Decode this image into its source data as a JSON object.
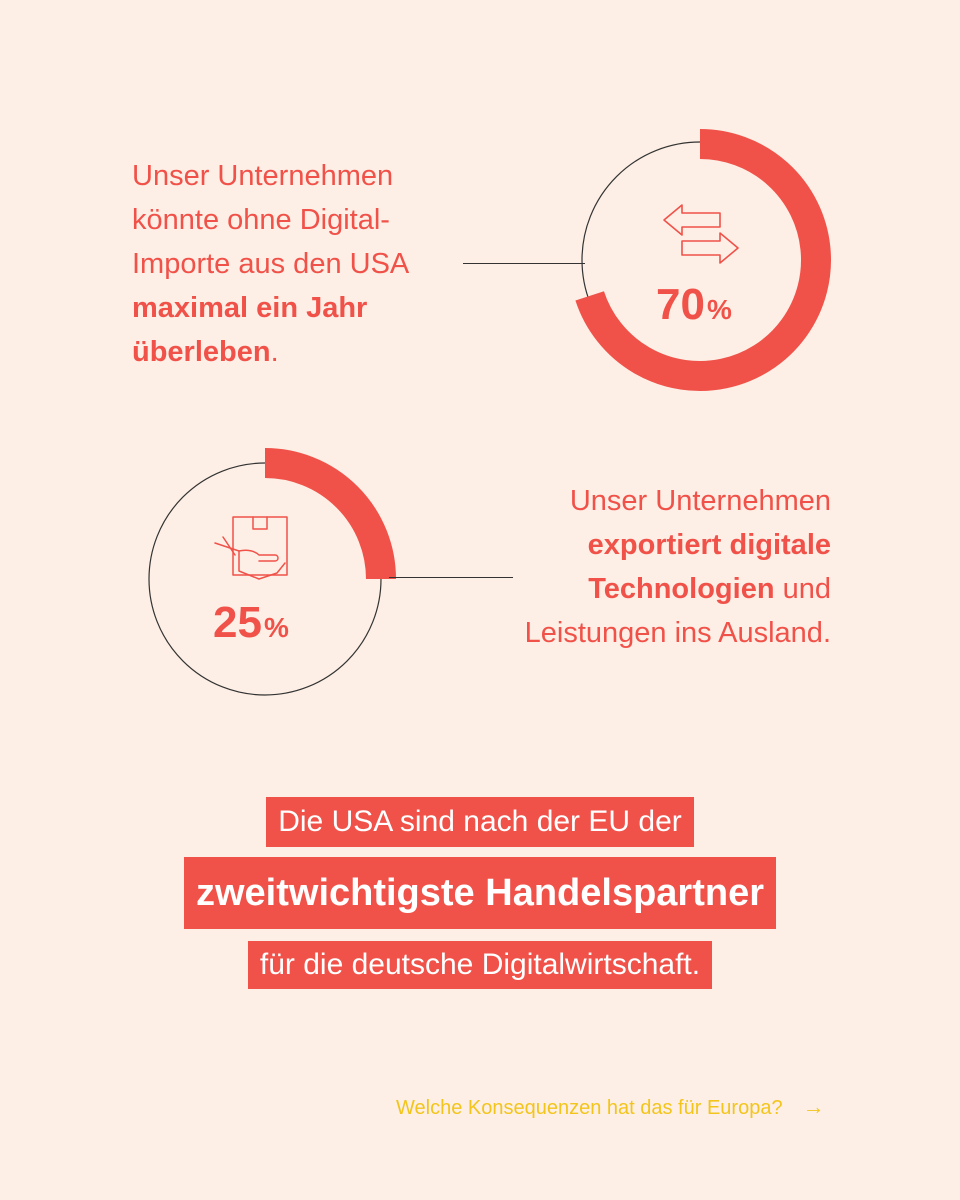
{
  "chart_data": [
    {
      "type": "pie",
      "values": [
        70
      ],
      "value_label": "70",
      "unit": "%",
      "icon": "arrows-exchange-icon",
      "description": {
        "part1": "Unser Unternehmen könnte ohne Digital-Importe aus den USA ",
        "bold": "maximal ein Jahr überleben",
        "part2": "."
      }
    },
    {
      "type": "pie",
      "values": [
        25
      ],
      "value_label": "25",
      "unit": "%",
      "icon": "box-hand-icon",
      "description": {
        "part1": "Unser Unternehmen ",
        "bold": "exportiert digitale Technologien",
        "part2": " und Leistungen ins Ausland."
      }
    }
  ],
  "highlight": {
    "line1": "Die USA sind nach der EU der",
    "line2": "zweitwichtigste Handelspartner",
    "line3": "für die deutsche Digitalwirtschaft."
  },
  "footer": {
    "text": "Welche Konsequenzen hat das für Europa?",
    "arrow": "→"
  },
  "colors": {
    "background": "#fdefe5",
    "accent": "#f0524a",
    "footer": "#f3c51c",
    "line": "#333333"
  }
}
